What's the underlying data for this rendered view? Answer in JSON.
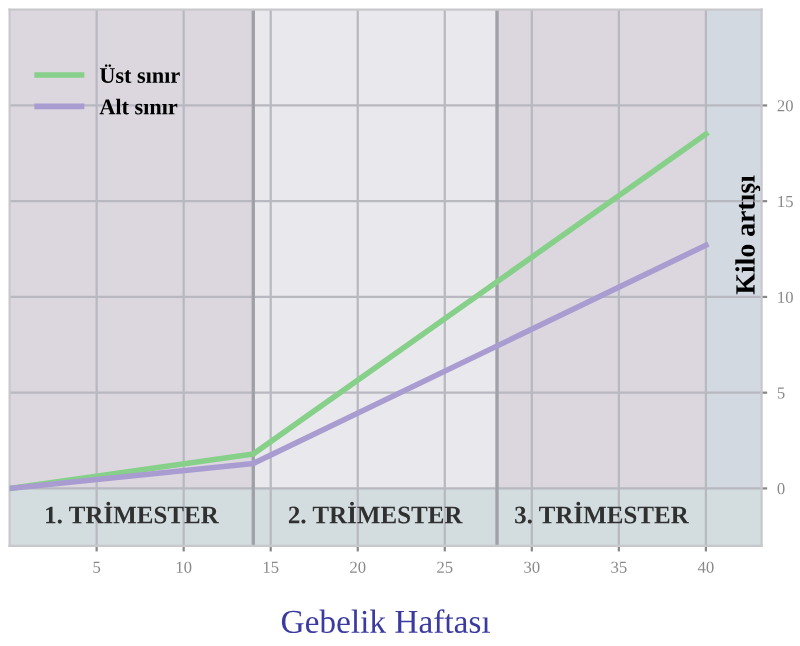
{
  "chart_data": {
    "type": "line",
    "xlabel": "Gebelik Haftası",
    "ylabel": "Kilo artışı",
    "x": [
      0,
      14,
      40
    ],
    "series": [
      {
        "name": "Üst sınır",
        "color": "#86d08a",
        "values": [
          0,
          1.8,
          18.5
        ]
      },
      {
        "name": "Alt sınır",
        "color": "#a89cd0",
        "values": [
          0,
          1.3,
          12.7
        ]
      }
    ],
    "xlim": [
      0,
      43.2
    ],
    "ylim": [
      -3,
      25
    ],
    "xticks": [
      5,
      10,
      15,
      20,
      25,
      30,
      35,
      40
    ],
    "yticks": [
      0,
      5,
      10,
      15,
      20
    ],
    "bands": [
      {
        "axis": "x",
        "from": 0,
        "to": 14,
        "label": "1. TRİMESTER",
        "color": "#dcd7de"
      },
      {
        "axis": "x",
        "from": 14,
        "to": 28,
        "label": "2. TRİMESTER",
        "color": "#e9e8ec"
      },
      {
        "axis": "x",
        "from": 28,
        "to": 40,
        "label": "3. TRİMESTER",
        "color": "#dcd7de"
      },
      {
        "axis": "x",
        "from": 40,
        "to": 43.2,
        "color": "#d3d9e0"
      },
      {
        "axis": "y",
        "from": -3,
        "to": 0,
        "color": "#d3dde0"
      }
    ],
    "ref_lines": [
      {
        "axis": "x",
        "value": 14,
        "color": "#a0a0a8"
      },
      {
        "axis": "x",
        "value": 28,
        "color": "#a0a0a8"
      }
    ],
    "grid": true,
    "legend": "top left",
    "line_style": "solid",
    "marker": "none"
  }
}
